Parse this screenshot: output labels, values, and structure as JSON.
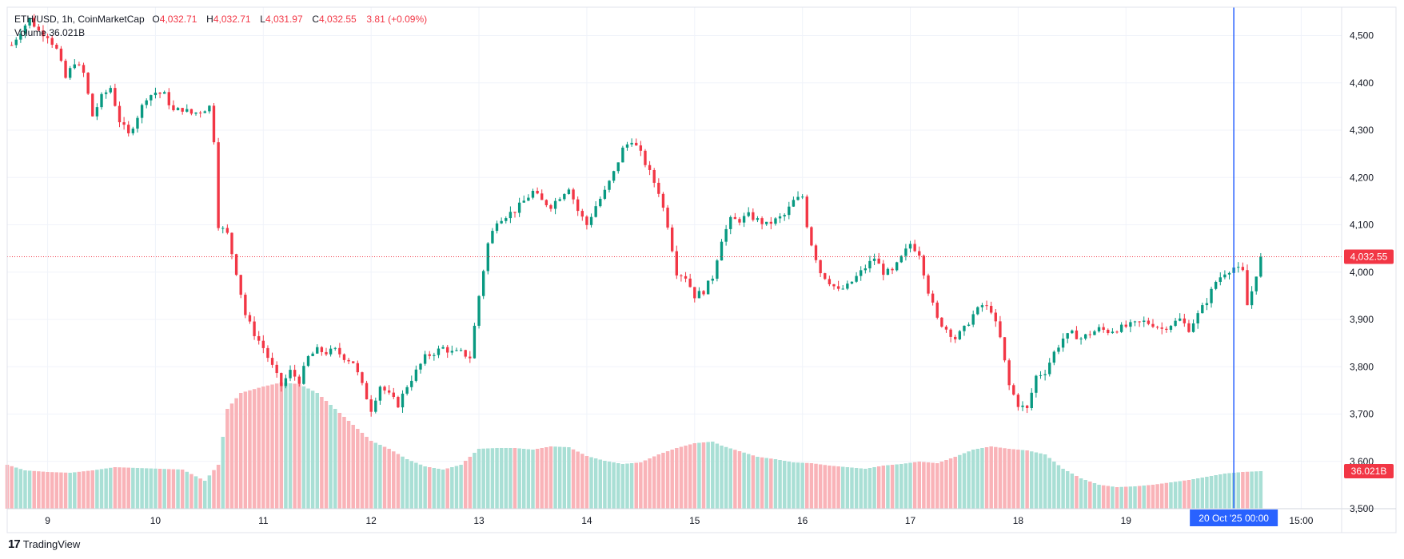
{
  "legend": {
    "symbol": "ETH/USD, 1h, CoinMarketCap",
    "open_label": "O",
    "open": "4,032.71",
    "high_label": "H",
    "high": "4,032.71",
    "low_label": "L",
    "low": "4,031.97",
    "close_label": "C",
    "close": "4,032.55",
    "change": "3.81 (+0.09%)",
    "volume_label": "Volume",
    "volume_value": "36.021B"
  },
  "branding": {
    "name": "TradingView",
    "logo": "17"
  },
  "colors": {
    "up": "#089981",
    "down": "#f23645",
    "up_volume": "#a9dfd5",
    "down_volume": "#f9b3b8",
    "crosshair": "#2962ff",
    "grid": "#f0f3fa"
  },
  "chart_data": {
    "type": "candlestick",
    "title": "ETH/USD, 1h, CoinMarketCap",
    "xlabel": "",
    "ylabel": "",
    "ylim": [
      3500,
      4560
    ],
    "y_ticks": [
      3500,
      3600,
      3700,
      3800,
      3900,
      4000,
      4100,
      4200,
      4300,
      4400,
      4500
    ],
    "y_tick_labels": [
      "3,500",
      "3,600",
      "3,700",
      "3,800",
      "3,900",
      "4,000",
      "4,100",
      "4,200",
      "4,300",
      "4,400",
      "4,500"
    ],
    "x_ticks": [
      {
        "label": "9",
        "hour": 0
      },
      {
        "label": "10",
        "hour": 24
      },
      {
        "label": "11",
        "hour": 48
      },
      {
        "label": "12",
        "hour": 72
      },
      {
        "label": "13",
        "hour": 96
      },
      {
        "label": "14",
        "hour": 120
      },
      {
        "label": "15",
        "hour": 144
      },
      {
        "label": "16",
        "hour": 168
      },
      {
        "label": "17",
        "hour": 192
      },
      {
        "label": "18",
        "hour": 216
      },
      {
        "label": "19",
        "hour": 240
      },
      {
        "label": "15:00",
        "hour": 279
      }
    ],
    "x_range_hours": [
      -9,
      288
    ],
    "last_price": 4032.55,
    "last_price_label": "4,032.55",
    "last_volume_label": "36.021B",
    "crosshair": {
      "hour": 264,
      "label": "20 Oct '25   00:00"
    },
    "volume_ylim": [
      0,
      16
    ],
    "anchors": [
      [
        -8,
        4480
      ],
      [
        -6,
        4510
      ],
      [
        -4,
        4535
      ],
      [
        -2,
        4510
      ],
      [
        0,
        4500
      ],
      [
        2,
        4470
      ],
      [
        4,
        4410
      ],
      [
        6,
        4445
      ],
      [
        8,
        4420
      ],
      [
        10,
        4330
      ],
      [
        12,
        4370
      ],
      [
        14,
        4390
      ],
      [
        16,
        4320
      ],
      [
        18,
        4290
      ],
      [
        20,
        4330
      ],
      [
        22,
        4370
      ],
      [
        24,
        4380
      ],
      [
        26,
        4375
      ],
      [
        28,
        4340
      ],
      [
        30,
        4345
      ],
      [
        32,
        4335
      ],
      [
        34,
        4340
      ],
      [
        36,
        4350
      ],
      [
        37,
        4280
      ],
      [
        38,
        4100
      ],
      [
        40,
        4080
      ],
      [
        42,
        4000
      ],
      [
        44,
        3910
      ],
      [
        46,
        3870
      ],
      [
        48,
        3840
      ],
      [
        50,
        3800
      ],
      [
        52,
        3760
      ],
      [
        54,
        3790
      ],
      [
        56,
        3770
      ],
      [
        58,
        3820
      ],
      [
        60,
        3835
      ],
      [
        62,
        3830
      ],
      [
        64,
        3835
      ],
      [
        66,
        3820
      ],
      [
        68,
        3810
      ],
      [
        70,
        3760
      ],
      [
        72,
        3710
      ],
      [
        74,
        3760
      ],
      [
        76,
        3740
      ],
      [
        78,
        3720
      ],
      [
        80,
        3760
      ],
      [
        82,
        3790
      ],
      [
        84,
        3820
      ],
      [
        86,
        3830
      ],
      [
        88,
        3840
      ],
      [
        90,
        3830
      ],
      [
        92,
        3830
      ],
      [
        94,
        3820
      ],
      [
        96,
        3950
      ],
      [
        98,
        4060
      ],
      [
        100,
        4110
      ],
      [
        102,
        4120
      ],
      [
        104,
        4130
      ],
      [
        106,
        4150
      ],
      [
        108,
        4170
      ],
      [
        110,
        4150
      ],
      [
        112,
        4140
      ],
      [
        114,
        4160
      ],
      [
        116,
        4180
      ],
      [
        118,
        4130
      ],
      [
        120,
        4100
      ],
      [
        122,
        4140
      ],
      [
        124,
        4170
      ],
      [
        126,
        4210
      ],
      [
        128,
        4260
      ],
      [
        130,
        4280
      ],
      [
        132,
        4250
      ],
      [
        134,
        4210
      ],
      [
        136,
        4170
      ],
      [
        138,
        4100
      ],
      [
        140,
        4000
      ],
      [
        142,
        3990
      ],
      [
        144,
        3950
      ],
      [
        146,
        3960
      ],
      [
        148,
        3990
      ],
      [
        150,
        4070
      ],
      [
        152,
        4110
      ],
      [
        154,
        4110
      ],
      [
        156,
        4120
      ],
      [
        158,
        4110
      ],
      [
        160,
        4100
      ],
      [
        162,
        4110
      ],
      [
        164,
        4120
      ],
      [
        166,
        4150
      ],
      [
        168,
        4160
      ],
      [
        169,
        4100
      ],
      [
        170,
        4060
      ],
      [
        172,
        4000
      ],
      [
        174,
        3980
      ],
      [
        176,
        3960
      ],
      [
        178,
        3970
      ],
      [
        180,
        3990
      ],
      [
        182,
        4010
      ],
      [
        184,
        4030
      ],
      [
        186,
        4000
      ],
      [
        188,
        4000
      ],
      [
        190,
        4030
      ],
      [
        192,
        4060
      ],
      [
        194,
        4040
      ],
      [
        196,
        3960
      ],
      [
        198,
        3900
      ],
      [
        200,
        3880
      ],
      [
        202,
        3860
      ],
      [
        204,
        3880
      ],
      [
        206,
        3910
      ],
      [
        208,
        3930
      ],
      [
        210,
        3920
      ],
      [
        212,
        3860
      ],
      [
        214,
        3760
      ],
      [
        216,
        3720
      ],
      [
        218,
        3710
      ],
      [
        220,
        3780
      ],
      [
        222,
        3790
      ],
      [
        224,
        3830
      ],
      [
        226,
        3860
      ],
      [
        228,
        3870
      ],
      [
        230,
        3860
      ],
      [
        232,
        3870
      ],
      [
        234,
        3880
      ],
      [
        236,
        3875
      ],
      [
        238,
        3880
      ],
      [
        240,
        3885
      ],
      [
        242,
        3890
      ],
      [
        244,
        3895
      ],
      [
        246,
        3890
      ],
      [
        248,
        3880
      ],
      [
        250,
        3890
      ],
      [
        252,
        3900
      ],
      [
        254,
        3880
      ],
      [
        256,
        3910
      ],
      [
        258,
        3940
      ],
      [
        260,
        3980
      ],
      [
        262,
        4000
      ],
      [
        264,
        4010
      ],
      [
        266,
        4000
      ],
      [
        267,
        3930
      ],
      [
        268,
        3960
      ],
      [
        270,
        4033
      ]
    ],
    "volume_anchors": [
      [
        -9,
        5.5
      ],
      [
        -5,
        4.8
      ],
      [
        0,
        4.6
      ],
      [
        5,
        4.5
      ],
      [
        10,
        4.8
      ],
      [
        15,
        5.2
      ],
      [
        20,
        5.1
      ],
      [
        25,
        5.0
      ],
      [
        30,
        4.9
      ],
      [
        35,
        3.5
      ],
      [
        38,
        5.5
      ],
      [
        40,
        12.5
      ],
      [
        43,
        14.5
      ],
      [
        48,
        15.3
      ],
      [
        52,
        15.8
      ],
      [
        56,
        15.6
      ],
      [
        60,
        14.5
      ],
      [
        64,
        12.5
      ],
      [
        68,
        10.5
      ],
      [
        72,
        8.5
      ],
      [
        76,
        7.5
      ],
      [
        80,
        6.2
      ],
      [
        84,
        5.3
      ],
      [
        88,
        4.9
      ],
      [
        92,
        5.5
      ],
      [
        96,
        7.5
      ],
      [
        100,
        7.6
      ],
      [
        104,
        7.6
      ],
      [
        108,
        7.4
      ],
      [
        112,
        7.8
      ],
      [
        116,
        7.7
      ],
      [
        120,
        6.6
      ],
      [
        124,
        6.0
      ],
      [
        128,
        5.6
      ],
      [
        132,
        5.8
      ],
      [
        136,
        6.8
      ],
      [
        140,
        7.6
      ],
      [
        144,
        8.2
      ],
      [
        148,
        8.4
      ],
      [
        150,
        7.9
      ],
      [
        154,
        7.2
      ],
      [
        158,
        6.5
      ],
      [
        162,
        6.2
      ],
      [
        166,
        5.8
      ],
      [
        170,
        5.7
      ],
      [
        174,
        5.4
      ],
      [
        178,
        5.2
      ],
      [
        182,
        5.0
      ],
      [
        186,
        5.4
      ],
      [
        190,
        5.6
      ],
      [
        194,
        5.9
      ],
      [
        198,
        5.7
      ],
      [
        202,
        6.5
      ],
      [
        206,
        7.4
      ],
      [
        210,
        7.8
      ],
      [
        214,
        7.5
      ],
      [
        218,
        7.3
      ],
      [
        222,
        6.8
      ],
      [
        226,
        5.0
      ],
      [
        230,
        3.8
      ],
      [
        234,
        3.0
      ],
      [
        238,
        2.7
      ],
      [
        242,
        2.8
      ],
      [
        246,
        3.0
      ],
      [
        250,
        3.3
      ],
      [
        254,
        3.6
      ],
      [
        258,
        4.0
      ],
      [
        262,
        4.4
      ],
      [
        266,
        4.6
      ],
      [
        270,
        4.7
      ]
    ]
  }
}
